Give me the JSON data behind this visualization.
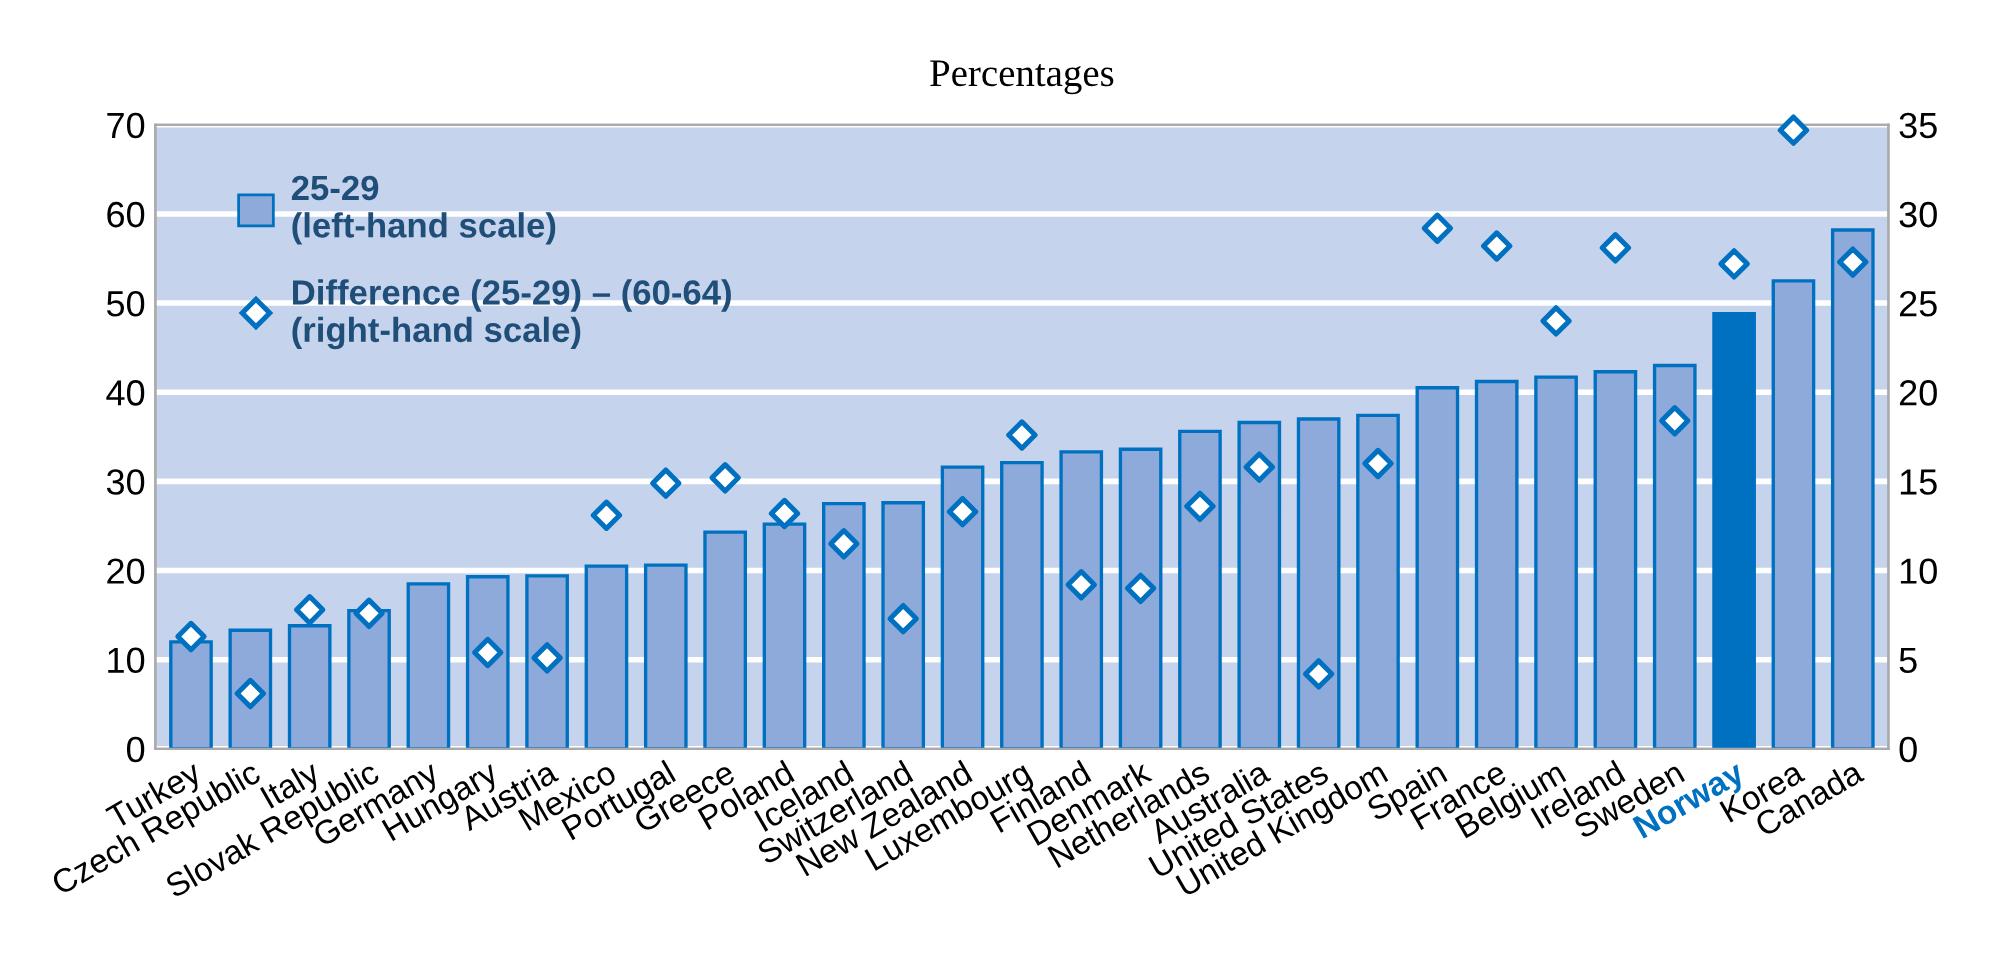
{
  "chart_data": {
    "type": "bar",
    "title": "Percentages",
    "categories": [
      "Turkey",
      "Czech Republic",
      "Italy",
      "Slovak Republic",
      "Germany",
      "Hungary",
      "Austria",
      "Mexico",
      "Portugal",
      "Greece",
      "Poland",
      "Iceland",
      "Switzerland",
      "New Zealand",
      "Luxembourg",
      "Finland",
      "Denmark",
      "Netherlands",
      "Australia",
      "United States",
      "United Kingdom",
      "Spain",
      "France",
      "Belgium",
      "Ireland",
      "Sweden",
      "Norway",
      "Korea",
      "Canada"
    ],
    "series": [
      {
        "name": "25-29\n(left-hand scale)",
        "color": "#8eaadb",
        "colors": [
          "#8eaadb",
          "#8eaadb",
          "#8eaadb",
          "#8eaadb",
          "#8eaadb",
          "#8eaadb",
          "#8eaadb",
          "#8eaadb",
          "#8eaadb",
          "#8eaadb",
          "#8eaadb",
          "#8eaadb",
          "#8eaadb",
          "#8eaadb",
          "#8eaadb",
          "#8eaadb",
          "#8eaadb",
          "#8eaadb",
          "#8eaadb",
          "#8eaadb",
          "#8eaadb",
          "#8eaadb",
          "#8eaadb",
          "#8eaadb",
          "#8eaadb",
          "#8eaadb",
          "#0070c0",
          "#8eaadb",
          "#8eaadb"
        ],
        "values": [
          12,
          13.3,
          13.8,
          15.5,
          18.5,
          19.3,
          19.4,
          20.5,
          20.6,
          24.3,
          25.2,
          27.5,
          27.6,
          31.6,
          32.1,
          33.3,
          33.6,
          35.6,
          36.6,
          37,
          37.4,
          40.5,
          41.2,
          41.7,
          42.3,
          43,
          48.8,
          52.5,
          58.2
        ]
      },
      {
        "name": "Difference (25-29) – (60-64)\n(right-hand scale)",
        "type": "scatter",
        "axis": "y2",
        "color": "#0070c0",
        "marker": "diamond",
        "values": [
          6.3,
          3.1,
          7.8,
          7.6,
          null,
          5.4,
          5.1,
          13.1,
          14.9,
          15.2,
          13.2,
          11.5,
          7.3,
          13.3,
          17.6,
          9.2,
          9.0,
          13.6,
          15.8,
          4.2,
          16.0,
          29.2,
          28.2,
          24.0,
          28.1,
          18.4,
          27.2,
          34.7,
          27.3
        ]
      }
    ],
    "ylim": [
      0,
      70
    ],
    "yticks": [
      0,
      10,
      20,
      30,
      40,
      50,
      60,
      70
    ],
    "y2lim": [
      0,
      35
    ],
    "y2ticks": [
      0,
      5,
      10,
      15,
      20,
      25,
      30,
      35
    ],
    "grid": "y",
    "legend": "top left"
  }
}
